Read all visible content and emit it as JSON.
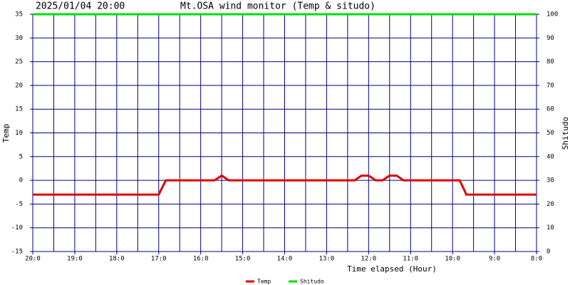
{
  "chart_data": {
    "type": "line",
    "title": "Mt.OSA wind monitor (Temp & situdo)",
    "subtitle": "2025/01/04 20:00",
    "x_label": "Time elapsed (Hour)",
    "y_label": "Temp",
    "y2_label": "Shitudo",
    "x": [
      0,
      3,
      3.17,
      4.33,
      4.5,
      4.67,
      7.67,
      7.83,
      8,
      8.17,
      8.33,
      8.5,
      8.67,
      8.83,
      10.17,
      10.33,
      12
    ],
    "series": [
      {
        "name": "Temp",
        "color": "#e00000",
        "values": [
          -3,
          -3,
          0,
          0,
          1,
          0,
          0,
          1,
          1,
          0,
          0,
          1,
          1,
          0,
          0,
          -3,
          -3
        ]
      },
      {
        "name": "Shitudo",
        "color": "#00e000",
        "axis": "y2",
        "values": [
          100,
          100,
          100,
          100,
          100,
          100,
          100,
          100,
          100,
          100,
          100,
          100,
          100,
          100,
          100,
          100,
          100
        ]
      }
    ],
    "xlim": [
      0,
      12
    ],
    "xticks": [
      {
        "value": 0,
        "label": "20:0"
      },
      {
        "value": 1,
        "label": "19:0"
      },
      {
        "value": 2,
        "label": "18:0"
      },
      {
        "value": 3,
        "label": "17:0"
      },
      {
        "value": 4,
        "label": "16:0"
      },
      {
        "value": 5,
        "label": "15:0"
      },
      {
        "value": 6,
        "label": "14:0"
      },
      {
        "value": 7,
        "label": "13:0"
      },
      {
        "value": 8,
        "label": "12:0"
      },
      {
        "value": 9,
        "label": "11:0"
      },
      {
        "value": 10,
        "label": "10:0"
      },
      {
        "value": 11,
        "label": "9:0"
      },
      {
        "value": 12,
        "label": "8:0"
      }
    ],
    "ylim": [
      -15,
      35
    ],
    "yticks": [
      -15,
      -10,
      -5,
      0,
      5,
      10,
      15,
      20,
      25,
      30,
      35
    ],
    "y2lim": [
      0,
      100
    ],
    "y2ticks": [
      0,
      10,
      20,
      30,
      40,
      50,
      60,
      70,
      80,
      90,
      100
    ],
    "grid": true,
    "grid_color": "#000080"
  }
}
